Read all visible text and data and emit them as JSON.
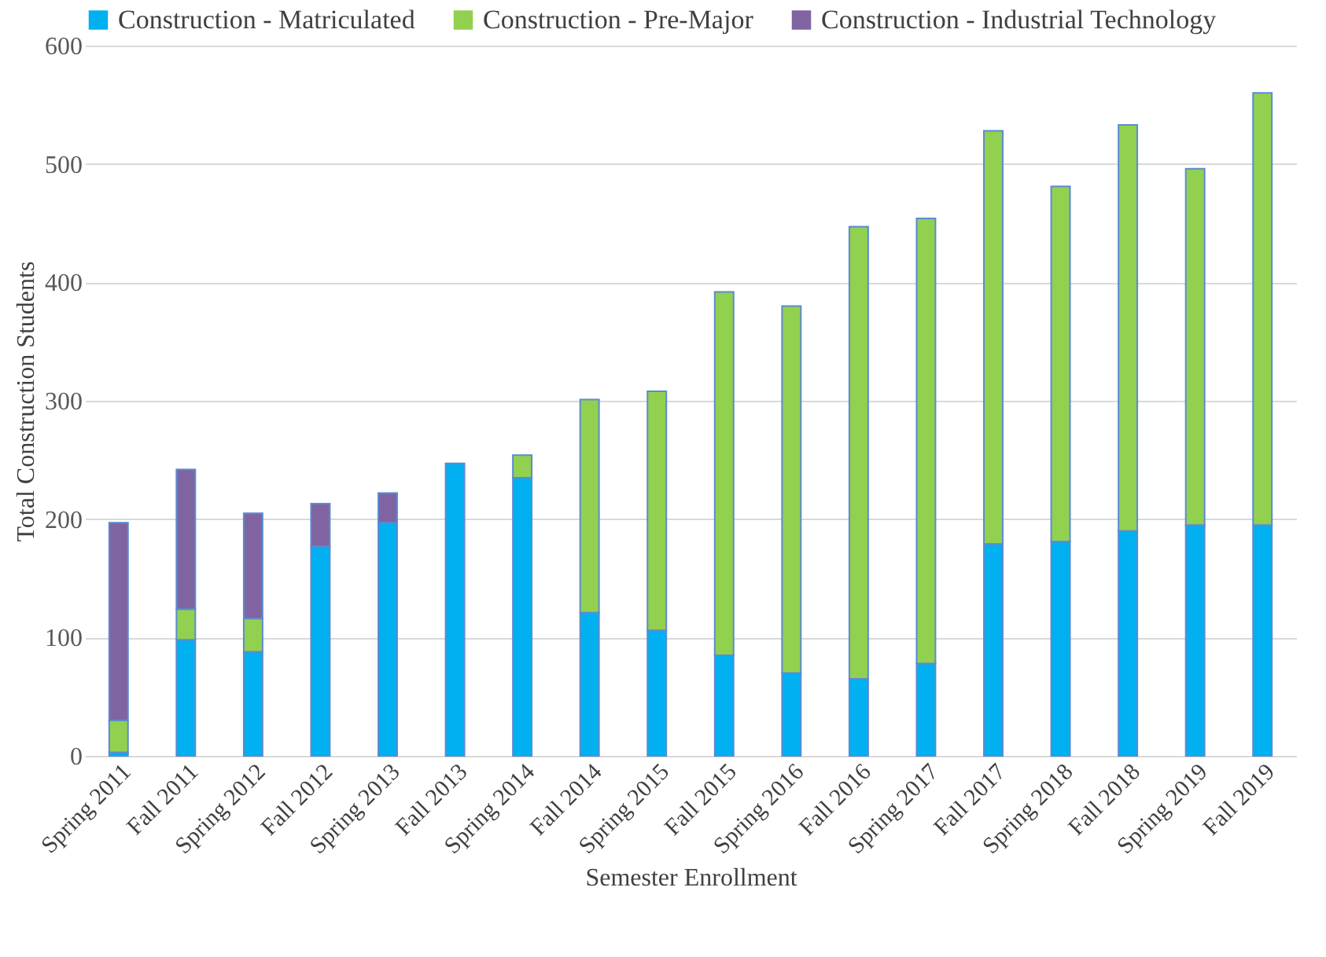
{
  "chart_data": {
    "type": "bar",
    "stacked": true,
    "xlabel": "Semester Enrollment",
    "ylabel": "Total Construction Students",
    "categories": [
      "Spring 2011",
      "Fall 2011",
      "Spring 2012",
      "Fall 2012",
      "Spring 2013",
      "Fall 2013",
      "Spring 2014",
      "Fall 2014",
      "Spring 2015",
      "Fall 2015",
      "Spring 2016",
      "Fall 2016",
      "Spring 2017",
      "Fall 2017",
      "Spring 2018",
      "Fall 2018",
      "Spring 2019",
      "Fall 2019"
    ],
    "series": [
      {
        "name": "Construction - Matriculated",
        "color": "#00b0f0",
        "values": [
          3,
          98,
          88,
          177,
          197,
          247,
          235,
          121,
          106,
          85,
          70,
          65,
          78,
          179,
          181,
          190,
          195,
          195
        ]
      },
      {
        "name": "Construction - Pre-Major",
        "color": "#92d050",
        "values": [
          27,
          26,
          28,
          null,
          null,
          null,
          19,
          180,
          202,
          307,
          310,
          382,
          376,
          349,
          300,
          343,
          301,
          365
        ]
      },
      {
        "name": "Construction - Industrial Technology",
        "color": "#8064a2",
        "values": [
          167,
          118,
          89,
          36,
          25,
          null,
          null,
          null,
          null,
          null,
          null,
          null,
          null,
          null,
          null,
          null,
          null,
          null
        ]
      }
    ],
    "ylim": [
      0,
      600
    ],
    "yticks": [
      0,
      100,
      200,
      300,
      400,
      500,
      600
    ],
    "grid": "y",
    "legend": "top left"
  }
}
